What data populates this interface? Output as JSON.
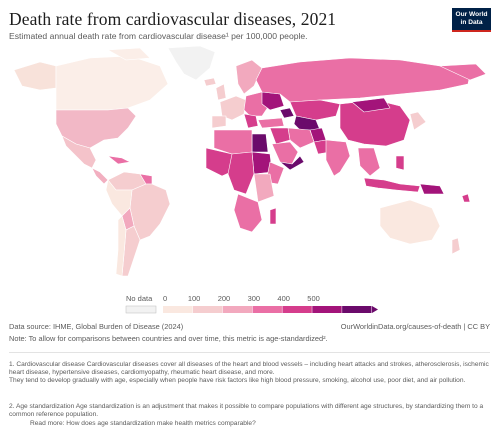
{
  "header": {
    "title": "Death rate from cardiovascular diseases, 2021",
    "subtitle": "Estimated annual death rate from cardiovascular disease¹ per 100,000 people."
  },
  "logo": {
    "line1": "Our World",
    "line2": "in Data"
  },
  "legend": {
    "no_data_label": "No data",
    "ticks": [
      "0",
      "100",
      "200",
      "300",
      "400",
      "500"
    ],
    "colors": [
      "#fae8e0",
      "#f5cdcf",
      "#f2a9be",
      "#ea6fa5",
      "#d53d8c",
      "#a3147a",
      "#6b0a6b"
    ],
    "no_data_color": "#f2f2f2"
  },
  "map_colors": {
    "ocean": "#ffffff",
    "border": "#ffffff",
    "outline": "#c9c9c9"
  },
  "footer": {
    "source": "Data source: IHME, Global Burden of Disease (2024)",
    "url": "OurWorldinData.org/causes-of-death | CC BY",
    "note": "Note: To allow for comparisons between countries and over time, this metric is age-standardized².",
    "footnote1": "1. Cardiovascular disease Cardiovascular diseases cover all diseases of the heart and blood vessels – including heart attacks and strokes, atherosclerosis, ischemic heart disease, hypertensive diseases, cardiomyopathy, rheumatic heart disease, and more.",
    "footnote1b": "They tend to develop gradually with age, especially when people have risk factors like high blood pressure, smoking, alcohol use, poor diet, and air pollution.",
    "footnote2": "2. Age standardization Age standardization is an adjustment that makes it possible to compare populations with different age structures, by standardizing them to a common reference population.",
    "footnote2b": "Read more: How does age standardization make health metrics comparable?"
  }
}
